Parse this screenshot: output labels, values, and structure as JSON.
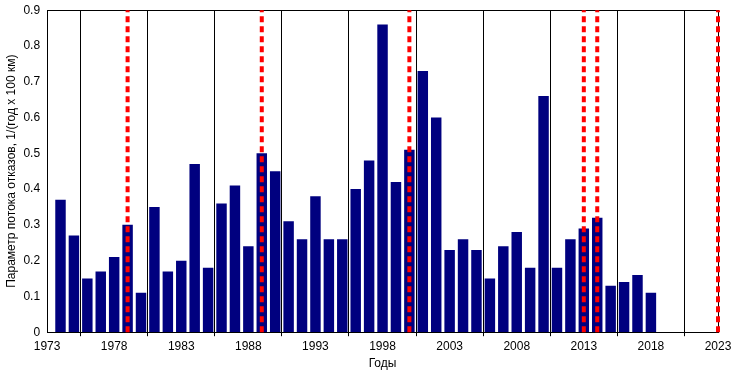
{
  "chart_data": {
    "type": "bar",
    "x_label": "Годы",
    "y_label": "Параметр потока отказов, 1/(год x 100 км)",
    "x": [
      1974,
      1975,
      1976,
      1977,
      1978,
      1979,
      1980,
      1981,
      1982,
      1983,
      1984,
      1985,
      1986,
      1987,
      1988,
      1989,
      1990,
      1991,
      1992,
      1993,
      1994,
      1995,
      1996,
      1997,
      1998,
      1999,
      2000,
      2001,
      2002,
      2003,
      2004,
      2005,
      2006,
      2007,
      2008,
      2009,
      2010,
      2011,
      2012,
      2013,
      2014,
      2015,
      2016,
      2017,
      2018
    ],
    "values": [
      0.37,
      0.27,
      0.15,
      0.17,
      0.21,
      0.3,
      0.11,
      0.35,
      0.17,
      0.2,
      0.47,
      0.18,
      0.36,
      0.41,
      0.24,
      0.5,
      0.45,
      0.31,
      0.26,
      0.38,
      0.26,
      0.26,
      0.4,
      0.48,
      0.86,
      0.42,
      0.51,
      0.73,
      0.6,
      0.23,
      0.26,
      0.23,
      0.15,
      0.24,
      0.28,
      0.18,
      0.66,
      0.18,
      0.26,
      0.29,
      0.32,
      0.13,
      0.14,
      0.16,
      0.11
    ],
    "color": "#00007f",
    "xlim": [
      1973,
      2023
    ],
    "xticks": [
      1973,
      1978,
      1983,
      1988,
      1993,
      1998,
      2003,
      2008,
      2013,
      2018,
      2023
    ],
    "ylim": [
      0,
      0.9
    ],
    "yticks": [
      0,
      0.1,
      0.2,
      0.3,
      0.4,
      0.5,
      0.6,
      0.7,
      0.8,
      0.9
    ],
    "grid": "x",
    "vlines": {
      "x": [
        1979,
        1989,
        2000,
        2013,
        2014,
        2023
      ],
      "color": "#ff0000",
      "line_style": "dashed"
    }
  }
}
